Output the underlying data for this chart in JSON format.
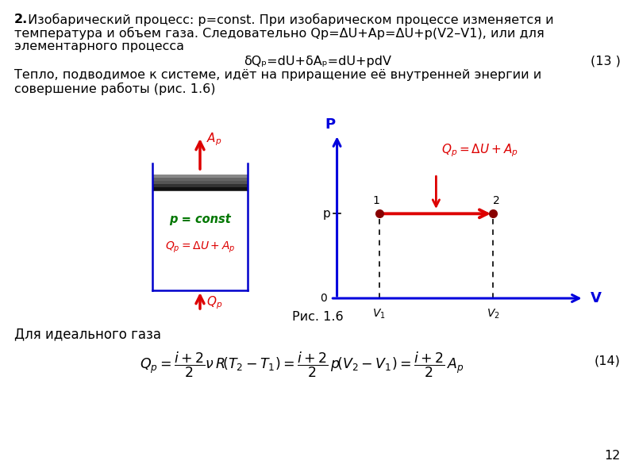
{
  "bg_color": "#ffffff",
  "text_color": "#000000",
  "title_bold": "2.",
  "title_rest": " Изобарический процесс: p=const. При изобарическом процессе изменяется и\nтемпература и объем газа. Следовательно Qp=ΔU+Ap=ΔU+p(V2–V1), или для\nэлементарного процесса",
  "formula1": "δQₚ=dU+δAₚ=dU+pdV",
  "formula1_num": "(13 )",
  "heat_text": "Тепло, подводимое к системе, идёт на приращение её внутренней энергии и\nсовершение работы (рис. 1.6)",
  "ris_caption": "Рис. 1.6",
  "formula2_text": "Для идеального газа",
  "page_num": "12",
  "box_color": "#0000cc",
  "red_color": "#dd0000",
  "green_color": "#007700",
  "ax_color": "#0000dd"
}
